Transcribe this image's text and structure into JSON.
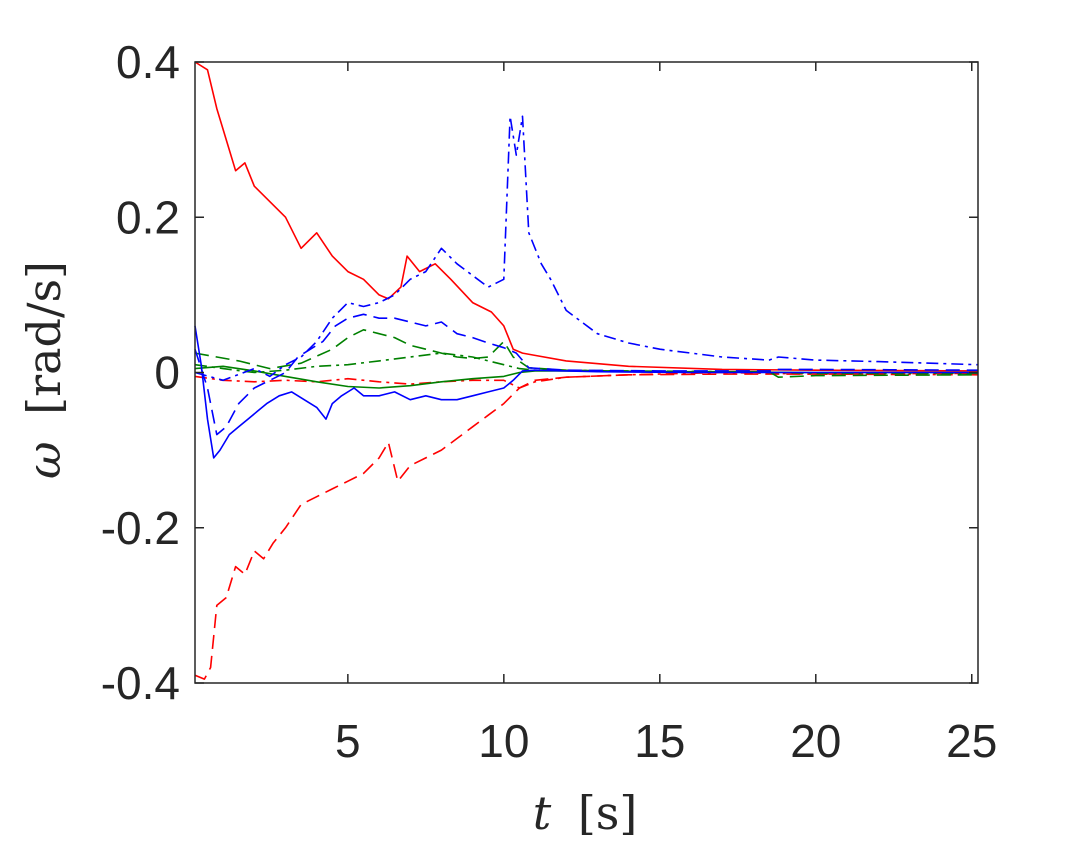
{
  "chart_data": {
    "type": "line",
    "xlabel_var": "t",
    "xlabel_unit": "[s]",
    "ylabel_var": "ω",
    "ylabel_unit": "[rad/s]",
    "xlim": [
      0.1,
      25.2
    ],
    "ylim": [
      -0.4,
      0.4
    ],
    "xticks": [
      5,
      10,
      15,
      20,
      25
    ],
    "yticks": [
      0.4,
      0.2,
      0,
      -0.2,
      -0.4
    ],
    "xtick_labels": [
      "5",
      "10",
      "15",
      "20",
      "25"
    ],
    "ytick_labels": [
      "0.4",
      "0.2",
      "0",
      "-0.2",
      "-0.4"
    ],
    "grid": false,
    "colors": {
      "red": "#ff0000",
      "green": "#008000",
      "blue": "#0000ff",
      "axis": "#262626"
    },
    "series": [
      {
        "color": "red",
        "style": "solid",
        "points": [
          [
            0.1,
            0.4
          ],
          [
            0.5,
            0.39
          ],
          [
            0.8,
            0.34
          ],
          [
            1.1,
            0.3
          ],
          [
            1.4,
            0.26
          ],
          [
            1.7,
            0.27
          ],
          [
            2.0,
            0.24
          ],
          [
            2.5,
            0.22
          ],
          [
            3.0,
            0.2
          ],
          [
            3.5,
            0.16
          ],
          [
            4.0,
            0.18
          ],
          [
            4.5,
            0.15
          ],
          [
            5.0,
            0.13
          ],
          [
            5.5,
            0.12
          ],
          [
            6.0,
            0.1
          ],
          [
            6.3,
            0.095
          ],
          [
            6.7,
            0.11
          ],
          [
            6.9,
            0.15
          ],
          [
            7.3,
            0.13
          ],
          [
            7.8,
            0.14
          ],
          [
            8.3,
            0.12
          ],
          [
            9.0,
            0.09
          ],
          [
            9.6,
            0.078
          ],
          [
            10.0,
            0.06
          ],
          [
            10.3,
            0.03
          ],
          [
            10.6,
            0.025
          ],
          [
            11.0,
            0.022
          ],
          [
            12.0,
            0.015
          ],
          [
            14.0,
            0.008
          ],
          [
            17.0,
            0.004
          ],
          [
            20.0,
            0.003
          ],
          [
            25.2,
            0.002
          ]
        ]
      },
      {
        "color": "red",
        "style": "dashed",
        "points": [
          [
            0.1,
            -0.39
          ],
          [
            0.4,
            -0.395
          ],
          [
            0.6,
            -0.38
          ],
          [
            0.8,
            -0.3
          ],
          [
            1.1,
            -0.29
          ],
          [
            1.4,
            -0.25
          ],
          [
            1.7,
            -0.26
          ],
          [
            2.0,
            -0.23
          ],
          [
            2.3,
            -0.24
          ],
          [
            2.6,
            -0.22
          ],
          [
            3.0,
            -0.2
          ],
          [
            3.5,
            -0.17
          ],
          [
            4.0,
            -0.16
          ],
          [
            4.5,
            -0.15
          ],
          [
            5.0,
            -0.14
          ],
          [
            5.5,
            -0.13
          ],
          [
            6.0,
            -0.11
          ],
          [
            6.3,
            -0.09
          ],
          [
            6.6,
            -0.14
          ],
          [
            7.0,
            -0.12
          ],
          [
            7.5,
            -0.11
          ],
          [
            8.0,
            -0.1
          ],
          [
            8.5,
            -0.085
          ],
          [
            9.0,
            -0.07
          ],
          [
            9.5,
            -0.055
          ],
          [
            10.0,
            -0.04
          ],
          [
            10.5,
            -0.02
          ],
          [
            11.0,
            -0.01
          ],
          [
            12.0,
            -0.006
          ],
          [
            14.0,
            -0.003
          ],
          [
            17.0,
            -0.002
          ],
          [
            20.0,
            -0.002
          ],
          [
            25.2,
            -0.001
          ]
        ]
      },
      {
        "color": "red",
        "style": "dashdot",
        "points": [
          [
            0.1,
            -0.005
          ],
          [
            1.0,
            -0.01
          ],
          [
            2.0,
            -0.012
          ],
          [
            3.0,
            -0.01
          ],
          [
            4.0,
            -0.012
          ],
          [
            5.0,
            -0.008
          ],
          [
            6.0,
            -0.012
          ],
          [
            7.0,
            -0.015
          ],
          [
            8.0,
            -0.012
          ],
          [
            9.0,
            -0.01
          ],
          [
            10.0,
            -0.01
          ],
          [
            10.5,
            -0.02
          ],
          [
            11.0,
            -0.012
          ],
          [
            12.0,
            -0.006
          ],
          [
            14.0,
            -0.003
          ],
          [
            17.0,
            0.0
          ],
          [
            20.0,
            -0.002
          ],
          [
            25.2,
            -0.003
          ]
        ]
      },
      {
        "color": "green",
        "style": "solid",
        "points": [
          [
            0.1,
            0.005
          ],
          [
            1.0,
            0.008
          ],
          [
            2.0,
            0.002
          ],
          [
            3.0,
            -0.005
          ],
          [
            4.0,
            -0.012
          ],
          [
            5.0,
            -0.018
          ],
          [
            6.0,
            -0.02
          ],
          [
            7.0,
            -0.017
          ],
          [
            8.0,
            -0.012
          ],
          [
            9.0,
            -0.008
          ],
          [
            10.0,
            -0.005
          ],
          [
            10.5,
            0.0
          ],
          [
            11.0,
            0.002
          ],
          [
            12.0,
            0.002
          ],
          [
            15.0,
            0.001
          ],
          [
            20.0,
            0.0
          ],
          [
            25.2,
            0.0
          ]
        ]
      },
      {
        "color": "green",
        "style": "dashed",
        "points": [
          [
            0.1,
            0.025
          ],
          [
            0.8,
            0.02
          ],
          [
            1.5,
            0.015
          ],
          [
            2.5,
            0.005
          ],
          [
            3.5,
            0.012
          ],
          [
            4.5,
            0.03
          ],
          [
            5.0,
            0.045
          ],
          [
            5.5,
            0.055
          ],
          [
            6.0,
            0.05
          ],
          [
            6.5,
            0.045
          ],
          [
            7.0,
            0.035
          ],
          [
            7.5,
            0.03
          ],
          [
            8.0,
            0.025
          ],
          [
            8.5,
            0.02
          ],
          [
            9.0,
            0.018
          ],
          [
            9.5,
            0.02
          ],
          [
            10.0,
            0.04
          ],
          [
            10.3,
            0.02
          ],
          [
            10.8,
            0.006
          ],
          [
            12.0,
            0.003
          ],
          [
            15.0,
            0.001
          ],
          [
            18.5,
            0.001
          ],
          [
            18.8,
            -0.006
          ],
          [
            20.0,
            -0.004
          ],
          [
            25.2,
            -0.003
          ]
        ]
      },
      {
        "color": "green",
        "style": "dashdot",
        "points": [
          [
            0.1,
            0.01
          ],
          [
            1.0,
            0.005
          ],
          [
            2.0,
            0.0
          ],
          [
            3.0,
            0.003
          ],
          [
            4.0,
            0.008
          ],
          [
            5.0,
            0.01
          ],
          [
            6.0,
            0.015
          ],
          [
            7.0,
            0.02
          ],
          [
            8.0,
            0.025
          ],
          [
            9.0,
            0.02
          ],
          [
            10.0,
            0.01
          ],
          [
            10.5,
            0.005
          ],
          [
            11.0,
            0.003
          ],
          [
            14.0,
            0.002
          ],
          [
            17.0,
            0.001
          ],
          [
            20.0,
            -0.001
          ],
          [
            25.2,
            -0.001
          ]
        ]
      },
      {
        "color": "blue",
        "style": "solid",
        "points": [
          [
            0.1,
            0.06
          ],
          [
            0.3,
            0.01
          ],
          [
            0.5,
            -0.06
          ],
          [
            0.7,
            -0.11
          ],
          [
            0.9,
            -0.1
          ],
          [
            1.2,
            -0.08
          ],
          [
            1.5,
            -0.07
          ],
          [
            1.8,
            -0.06
          ],
          [
            2.1,
            -0.05
          ],
          [
            2.4,
            -0.04
          ],
          [
            2.8,
            -0.03
          ],
          [
            3.2,
            -0.025
          ],
          [
            3.6,
            -0.035
          ],
          [
            4.0,
            -0.045
          ],
          [
            4.3,
            -0.06
          ],
          [
            4.5,
            -0.04
          ],
          [
            4.8,
            -0.03
          ],
          [
            5.2,
            -0.02
          ],
          [
            5.5,
            -0.03
          ],
          [
            6.0,
            -0.03
          ],
          [
            6.5,
            -0.025
          ],
          [
            7.0,
            -0.035
          ],
          [
            7.5,
            -0.03
          ],
          [
            8.0,
            -0.035
          ],
          [
            8.5,
            -0.035
          ],
          [
            9.0,
            -0.03
          ],
          [
            9.5,
            -0.025
          ],
          [
            10.0,
            -0.02
          ],
          [
            10.3,
            -0.01
          ],
          [
            10.6,
            0.002
          ],
          [
            11.0,
            0.003
          ],
          [
            13.0,
            0.001
          ],
          [
            16.0,
            0.0
          ],
          [
            20.0,
            0.0
          ],
          [
            25.2,
            0.0
          ]
        ]
      },
      {
        "color": "blue",
        "style": "dashed",
        "points": [
          [
            0.1,
            0.03
          ],
          [
            0.5,
            -0.02
          ],
          [
            0.8,
            -0.08
          ],
          [
            1.1,
            -0.07
          ],
          [
            1.5,
            -0.04
          ],
          [
            2.0,
            -0.02
          ],
          [
            2.5,
            -0.01
          ],
          [
            3.0,
            0.0
          ],
          [
            3.4,
            0.02
          ],
          [
            3.8,
            0.03
          ],
          [
            4.2,
            0.04
          ],
          [
            4.6,
            0.06
          ],
          [
            5.0,
            0.07
          ],
          [
            5.5,
            0.075
          ],
          [
            6.0,
            0.07
          ],
          [
            6.5,
            0.07
          ],
          [
            7.0,
            0.065
          ],
          [
            7.5,
            0.06
          ],
          [
            8.0,
            0.065
          ],
          [
            8.5,
            0.05
          ],
          [
            9.0,
            0.045
          ],
          [
            9.5,
            0.038
          ],
          [
            10.0,
            0.032
          ],
          [
            10.4,
            0.025
          ],
          [
            10.8,
            0.006
          ],
          [
            12.0,
            0.003
          ],
          [
            15.0,
            0.002
          ],
          [
            18.5,
            0.002
          ],
          [
            18.8,
            0.004
          ],
          [
            20.0,
            0.004
          ],
          [
            25.2,
            0.003
          ]
        ]
      },
      {
        "color": "blue",
        "style": "dashdot",
        "points": [
          [
            0.1,
            0.0
          ],
          [
            1.0,
            -0.01
          ],
          [
            2.0,
            0.005
          ],
          [
            2.5,
            -0.005
          ],
          [
            3.0,
            0.01
          ],
          [
            3.5,
            0.02
          ],
          [
            4.0,
            0.04
          ],
          [
            4.5,
            0.07
          ],
          [
            5.0,
            0.09
          ],
          [
            5.5,
            0.085
          ],
          [
            6.0,
            0.09
          ],
          [
            6.5,
            0.1
          ],
          [
            7.0,
            0.12
          ],
          [
            7.5,
            0.13
          ],
          [
            8.0,
            0.16
          ],
          [
            8.5,
            0.14
          ],
          [
            9.0,
            0.125
          ],
          [
            9.5,
            0.11
          ],
          [
            10.0,
            0.12
          ],
          [
            10.2,
            0.33
          ],
          [
            10.4,
            0.28
          ],
          [
            10.6,
            0.33
          ],
          [
            10.8,
            0.18
          ],
          [
            11.2,
            0.14
          ],
          [
            11.5,
            0.12
          ],
          [
            12.0,
            0.08
          ],
          [
            13.0,
            0.05
          ],
          [
            14.0,
            0.038
          ],
          [
            15.0,
            0.03
          ],
          [
            16.0,
            0.025
          ],
          [
            17.0,
            0.02
          ],
          [
            18.5,
            0.016
          ],
          [
            18.8,
            0.02
          ],
          [
            20.0,
            0.016
          ],
          [
            22.0,
            0.014
          ],
          [
            25.2,
            0.01
          ]
        ]
      }
    ]
  }
}
